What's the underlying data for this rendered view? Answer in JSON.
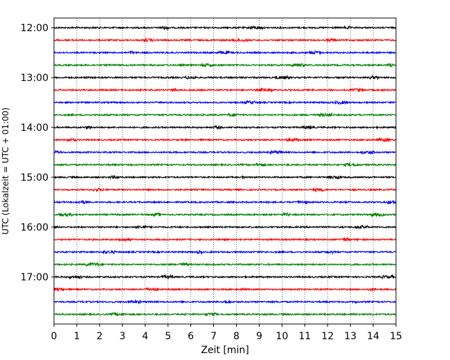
{
  "chart_data": {
    "type": "line",
    "title": "",
    "xlabel": "Zeit  [min]",
    "ylabel": "UTC (Lokalzeit = UTC + 01:00)",
    "xlim": [
      0,
      15
    ],
    "x_ticks": [
      "0",
      "1",
      "2",
      "3",
      "4",
      "5",
      "6",
      "7",
      "8",
      "9",
      "10",
      "11",
      "12",
      "13",
      "14",
      "15"
    ],
    "y_ticks": [
      "12:00",
      "13:00",
      "14:00",
      "15:00",
      "16:00",
      "17:00"
    ],
    "grid": "vertical dotted",
    "row_interval_minutes": 15,
    "series": [
      {
        "row_time": "12:00",
        "color": "#000000",
        "noise": 0.35
      },
      {
        "row_time": "12:15",
        "color": "#ff0000",
        "noise": 0.35
      },
      {
        "row_time": "12:30",
        "color": "#0000ff",
        "noise": 0.35
      },
      {
        "row_time": "12:45",
        "color": "#008000",
        "noise": 0.35
      },
      {
        "row_time": "13:00",
        "color": "#000000",
        "noise": 0.35
      },
      {
        "row_time": "13:15",
        "color": "#ff0000",
        "noise": 0.35
      },
      {
        "row_time": "13:30",
        "color": "#0000ff",
        "noise": 0.35
      },
      {
        "row_time": "13:45",
        "color": "#008000",
        "noise": 0.35
      },
      {
        "row_time": "14:00",
        "color": "#000000",
        "noise": 0.35
      },
      {
        "row_time": "14:15",
        "color": "#ff0000",
        "noise": 0.35
      },
      {
        "row_time": "14:30",
        "color": "#0000ff",
        "noise": 0.35
      },
      {
        "row_time": "14:45",
        "color": "#008000",
        "noise": 0.35
      },
      {
        "row_time": "15:00",
        "color": "#000000",
        "noise": 0.35
      },
      {
        "row_time": "15:15",
        "color": "#ff0000",
        "noise": 0.35
      },
      {
        "row_time": "15:30",
        "color": "#0000ff",
        "noise": 0.35
      },
      {
        "row_time": "15:45",
        "color": "#008000",
        "noise": 0.35
      },
      {
        "row_time": "16:00",
        "color": "#000000",
        "noise": 0.35
      },
      {
        "row_time": "16:15",
        "color": "#ff0000",
        "noise": 0.35
      },
      {
        "row_time": "16:30",
        "color": "#0000ff",
        "noise": 0.35
      },
      {
        "row_time": "16:45",
        "color": "#008000",
        "noise": 0.35
      },
      {
        "row_time": "17:00",
        "color": "#000000",
        "noise": 0.35
      },
      {
        "row_time": "17:15",
        "color": "#ff0000",
        "noise": 0.35
      },
      {
        "row_time": "17:30",
        "color": "#0000ff",
        "noise": 0.35
      },
      {
        "row_time": "17:45",
        "color": "#008000",
        "noise": 0.35
      }
    ]
  }
}
